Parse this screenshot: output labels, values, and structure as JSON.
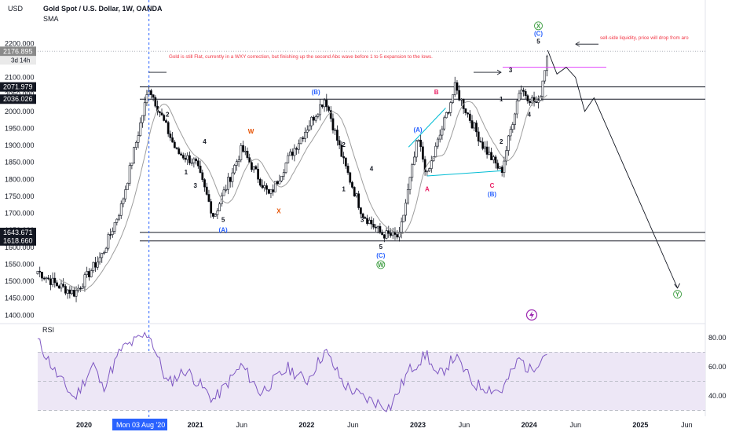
{
  "header": {
    "currency": "USD",
    "title": "Gold Spot / U.S. Dollar, 1W, OANDA",
    "indicator": "SMA"
  },
  "price_labels": [
    {
      "value": "2176.895",
      "sub": "3d 14h",
      "price": 2176.9,
      "bg": "#8a8a8a",
      "fg": "#ffffff"
    },
    {
      "value": "2071.979",
      "price": 2072.0,
      "bg": "#131722",
      "fg": "#ffffff"
    },
    {
      "value": "2036.026",
      "price": 2036.0,
      "bg": "#131722",
      "fg": "#ffffff"
    },
    {
      "value": "1643.671",
      "price": 1643.7,
      "bg": "#131722",
      "fg": "#ffffff"
    },
    {
      "value": "1618.660",
      "price": 1618.7,
      "bg": "#131722",
      "fg": "#ffffff"
    }
  ],
  "annotations": {
    "main_note": "Gold is still Flat, currently in a WXY correction, but finishing up the second Abc wave before 1 to 5 expansion to the lows.",
    "liquidity_note": "sell-side liquidity, price will drop from aro",
    "date_cursor": "Mon 03 Aug '20",
    "rsi_label": "RSI"
  },
  "colors": {
    "up_candle": "#ffffff",
    "down_candle": "#000000",
    "sma": "#9e9e9e",
    "rsi": "#7e57c2",
    "rsi_band": "#ede7f6",
    "label_blue": "#2962ff",
    "label_red": "#e91e63",
    "label_orange": "#e65100",
    "label_green": "#43a047",
    "cyan_line": "#00bcd4",
    "magenta_line": "#e040fb",
    "note_red": "#f23645",
    "cursor_blue": "#2962ff"
  },
  "chart_data": [
    {
      "type": "candlestick",
      "title": "Gold Spot / U.S. Dollar, 1W, OANDA",
      "x_range": [
        "2019-08",
        "2025-08"
      ],
      "ylim": [
        1380,
        2240
      ],
      "y_ticks": [
        "2200.000",
        "2150.000",
        "2100.000",
        "2050.000",
        "2000.000",
        "1950.000",
        "1900.000",
        "1850.000",
        "1800.000",
        "1750.000",
        "1700.000",
        "1650.000",
        "1600.000",
        "1550.000",
        "1500.000",
        "1450.000",
        "1400.000"
      ],
      "x_ticks": [
        "2020",
        "2021",
        "Jun",
        "2022",
        "Jun",
        "2023",
        "Jun",
        "2024",
        "Jun",
        "2025",
        "Jun"
      ],
      "key_points": [
        {
          "date": "2019-08",
          "close": 1530
        },
        {
          "date": "2019-10",
          "close": 1490
        },
        {
          "date": "2019-12",
          "close": 1465
        },
        {
          "date": "2020-03",
          "close": 1580
        },
        {
          "date": "2020-05",
          "close": 1720
        },
        {
          "date": "2020-08",
          "close": 2072
        },
        {
          "date": "2020-11",
          "close": 1880
        },
        {
          "date": "2021-01",
          "close": 1850
        },
        {
          "date": "2021-03",
          "close": 1690
        },
        {
          "date": "2021-06",
          "close": 1890
        },
        {
          "date": "2021-09",
          "close": 1750
        },
        {
          "date": "2021-11",
          "close": 1860
        },
        {
          "date": "2022-03",
          "close": 2040
        },
        {
          "date": "2022-05",
          "close": 1850
        },
        {
          "date": "2022-07",
          "close": 1700
        },
        {
          "date": "2022-09",
          "close": 1640
        },
        {
          "date": "2022-11",
          "close": 1630
        },
        {
          "date": "2023-01",
          "close": 1920
        },
        {
          "date": "2023-02",
          "close": 1810
        },
        {
          "date": "2023-05",
          "close": 2070
        },
        {
          "date": "2023-08",
          "close": 1900
        },
        {
          "date": "2023-10",
          "close": 1820
        },
        {
          "date": "2023-12",
          "close": 2070
        },
        {
          "date": "2024-01",
          "close": 2040
        },
        {
          "date": "2024-02",
          "close": 2020
        },
        {
          "date": "2024-03",
          "close": 2176.9
        }
      ],
      "levels": [
        2072.0,
        2036.0,
        1643.7,
        1618.7
      ],
      "projection": [
        {
          "date": "2024-03",
          "price": 2180
        },
        {
          "date": "2024-04",
          "price": 2110
        },
        {
          "date": "2024-05",
          "price": 2130
        },
        {
          "date": "2024-06",
          "price": 2100
        },
        {
          "date": "2024-07",
          "price": 2000
        },
        {
          "date": "2024-08",
          "price": 2040
        },
        {
          "date": "2025-05",
          "price": 1480
        }
      ],
      "wave_labels": [
        {
          "text": "2",
          "date": "2020-10",
          "price": 1985,
          "color": "#131722"
        },
        {
          "text": "1",
          "date": "2020-12",
          "price": 1815,
          "color": "#131722"
        },
        {
          "text": "4",
          "date": "2021-02",
          "price": 1905,
          "color": "#131722"
        },
        {
          "text": "3",
          "date": "2021-01",
          "price": 1775,
          "color": "#131722"
        },
        {
          "text": "5",
          "date": "2021-04",
          "price": 1675,
          "color": "#131722"
        },
        {
          "text": "(A)",
          "date": "2021-04",
          "price": 1645,
          "color": "#2962ff"
        },
        {
          "text": "W",
          "date": "2021-07",
          "price": 1935,
          "color": "#e65100"
        },
        {
          "text": "X",
          "date": "2021-10",
          "price": 1700,
          "color": "#e65100"
        },
        {
          "text": "(B)",
          "date": "2022-02",
          "price": 2050,
          "color": "#2962ff"
        },
        {
          "text": "2",
          "date": "2022-05",
          "price": 1895,
          "color": "#131722"
        },
        {
          "text": "4",
          "date": "2022-08",
          "price": 1825,
          "color": "#131722"
        },
        {
          "text": "1",
          "date": "2022-05",
          "price": 1765,
          "color": "#131722"
        },
        {
          "text": "3",
          "date": "2022-07",
          "price": 1675,
          "color": "#131722"
        },
        {
          "text": "5",
          "date": "2022-09",
          "price": 1595,
          "color": "#131722"
        },
        {
          "text": "(C)",
          "date": "2022-09",
          "price": 1570,
          "color": "#2962ff"
        },
        {
          "text": "W",
          "date": "2022-09",
          "price": 1542,
          "color": "#43a047",
          "circle": true
        },
        {
          "text": "(A)",
          "date": "2023-01",
          "price": 1940,
          "color": "#2962ff"
        },
        {
          "text": "A",
          "date": "2023-02",
          "price": 1765,
          "color": "#e91e63"
        },
        {
          "text": "B",
          "date": "2023-03",
          "price": 2050,
          "color": "#e91e63"
        },
        {
          "text": "C",
          "date": "2023-09",
          "price": 1775,
          "color": "#e91e63"
        },
        {
          "text": "(B)",
          "date": "2023-09",
          "price": 1750,
          "color": "#2962ff"
        },
        {
          "text": "3",
          "date": "2023-11",
          "price": 2115,
          "color": "#131722"
        },
        {
          "text": "1",
          "date": "2023-10",
          "price": 2030,
          "color": "#131722"
        },
        {
          "text": "2",
          "date": "2023-10",
          "price": 1905,
          "color": "#131722"
        },
        {
          "text": "4",
          "date": "2024-01",
          "price": 1985,
          "color": "#131722"
        },
        {
          "text": "5",
          "date": "2024-02",
          "price": 2200,
          "color": "#131722"
        },
        {
          "text": "(C)",
          "date": "2024-02",
          "price": 2223,
          "color": "#2962ff"
        },
        {
          "text": "X",
          "date": "2024-02",
          "price": 2245,
          "color": "#43a047",
          "circle": true
        },
        {
          "text": "Y",
          "date": "2025-05",
          "price": 1455,
          "color": "#43a047",
          "circle": true
        }
      ]
    },
    {
      "type": "line",
      "title": "RSI",
      "ylim": [
        27,
        88
      ],
      "y_ticks": [
        "80.00",
        "60.00",
        "40.00"
      ],
      "band": [
        30,
        70
      ],
      "points": [
        {
          "date": "2019-08",
          "value": 78
        },
        {
          "date": "2019-10",
          "value": 55
        },
        {
          "date": "2019-12",
          "value": 38
        },
        {
          "date": "2020-02",
          "value": 62
        },
        {
          "date": "2020-03",
          "value": 45
        },
        {
          "date": "2020-05",
          "value": 72
        },
        {
          "date": "2020-08",
          "value": 83
        },
        {
          "date": "2020-10",
          "value": 48
        },
        {
          "date": "2020-12",
          "value": 58
        },
        {
          "date": "2021-03",
          "value": 37
        },
        {
          "date": "2021-06",
          "value": 61
        },
        {
          "date": "2021-08",
          "value": 42
        },
        {
          "date": "2021-11",
          "value": 59
        },
        {
          "date": "2022-01",
          "value": 50
        },
        {
          "date": "2022-03",
          "value": 71
        },
        {
          "date": "2022-05",
          "value": 48
        },
        {
          "date": "2022-07",
          "value": 39
        },
        {
          "date": "2022-10",
          "value": 32
        },
        {
          "date": "2022-12",
          "value": 57
        },
        {
          "date": "2023-02",
          "value": 69
        },
        {
          "date": "2023-03",
          "value": 52
        },
        {
          "date": "2023-05",
          "value": 67
        },
        {
          "date": "2023-07",
          "value": 48
        },
        {
          "date": "2023-10",
          "value": 43
        },
        {
          "date": "2023-12",
          "value": 66
        },
        {
          "date": "2024-01",
          "value": 57
        },
        {
          "date": "2024-03",
          "value": 71
        }
      ]
    }
  ]
}
